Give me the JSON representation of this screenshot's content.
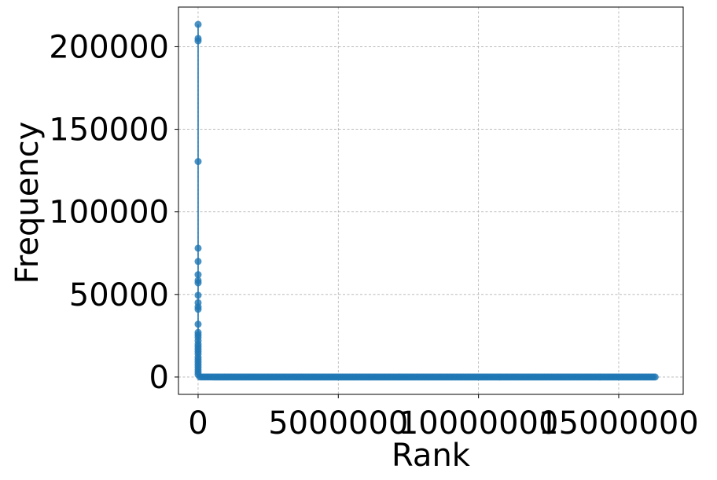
{
  "chart_data": {
    "type": "scatter",
    "title": "",
    "xlabel": "Rank",
    "ylabel": "Frequency",
    "xlim": [
      -700000,
      17300000
    ],
    "ylim": [
      -10500,
      224000
    ],
    "grid": true,
    "xticks": [
      0,
      5000000,
      10000000,
      15000000
    ],
    "xtick_labels": [
      "0",
      "5000000",
      "10000000",
      "15000000"
    ],
    "yticks": [
      0,
      50000,
      100000,
      150000,
      200000
    ],
    "ytick_labels": [
      "0",
      "50000",
      "100000",
      "150000",
      "200000"
    ],
    "series": [
      {
        "color": "#1f77b4",
        "marker": "circle",
        "connected": true,
        "head_points": {
          "x": [
            1,
            2,
            3,
            4,
            5,
            6,
            7,
            8,
            9,
            10,
            11,
            12,
            13,
            14,
            15,
            16,
            17,
            18,
            19,
            20,
            21,
            22,
            23,
            24,
            25,
            26,
            27,
            28,
            29,
            30
          ],
          "y": [
            213500,
            205000,
            203500,
            130500,
            78000,
            70000,
            62000,
            58500,
            57000,
            49500,
            45000,
            42500,
            41000,
            32000,
            27000,
            25500,
            24000,
            22000,
            20000,
            18500,
            17000,
            15500,
            14000,
            12000,
            10500,
            9000,
            7500,
            6000,
            4500,
            3000
          ]
        },
        "tail": {
          "x_start": 30,
          "x_end": 16300000,
          "y_start": 1500,
          "y_end": 1
        }
      }
    ]
  }
}
